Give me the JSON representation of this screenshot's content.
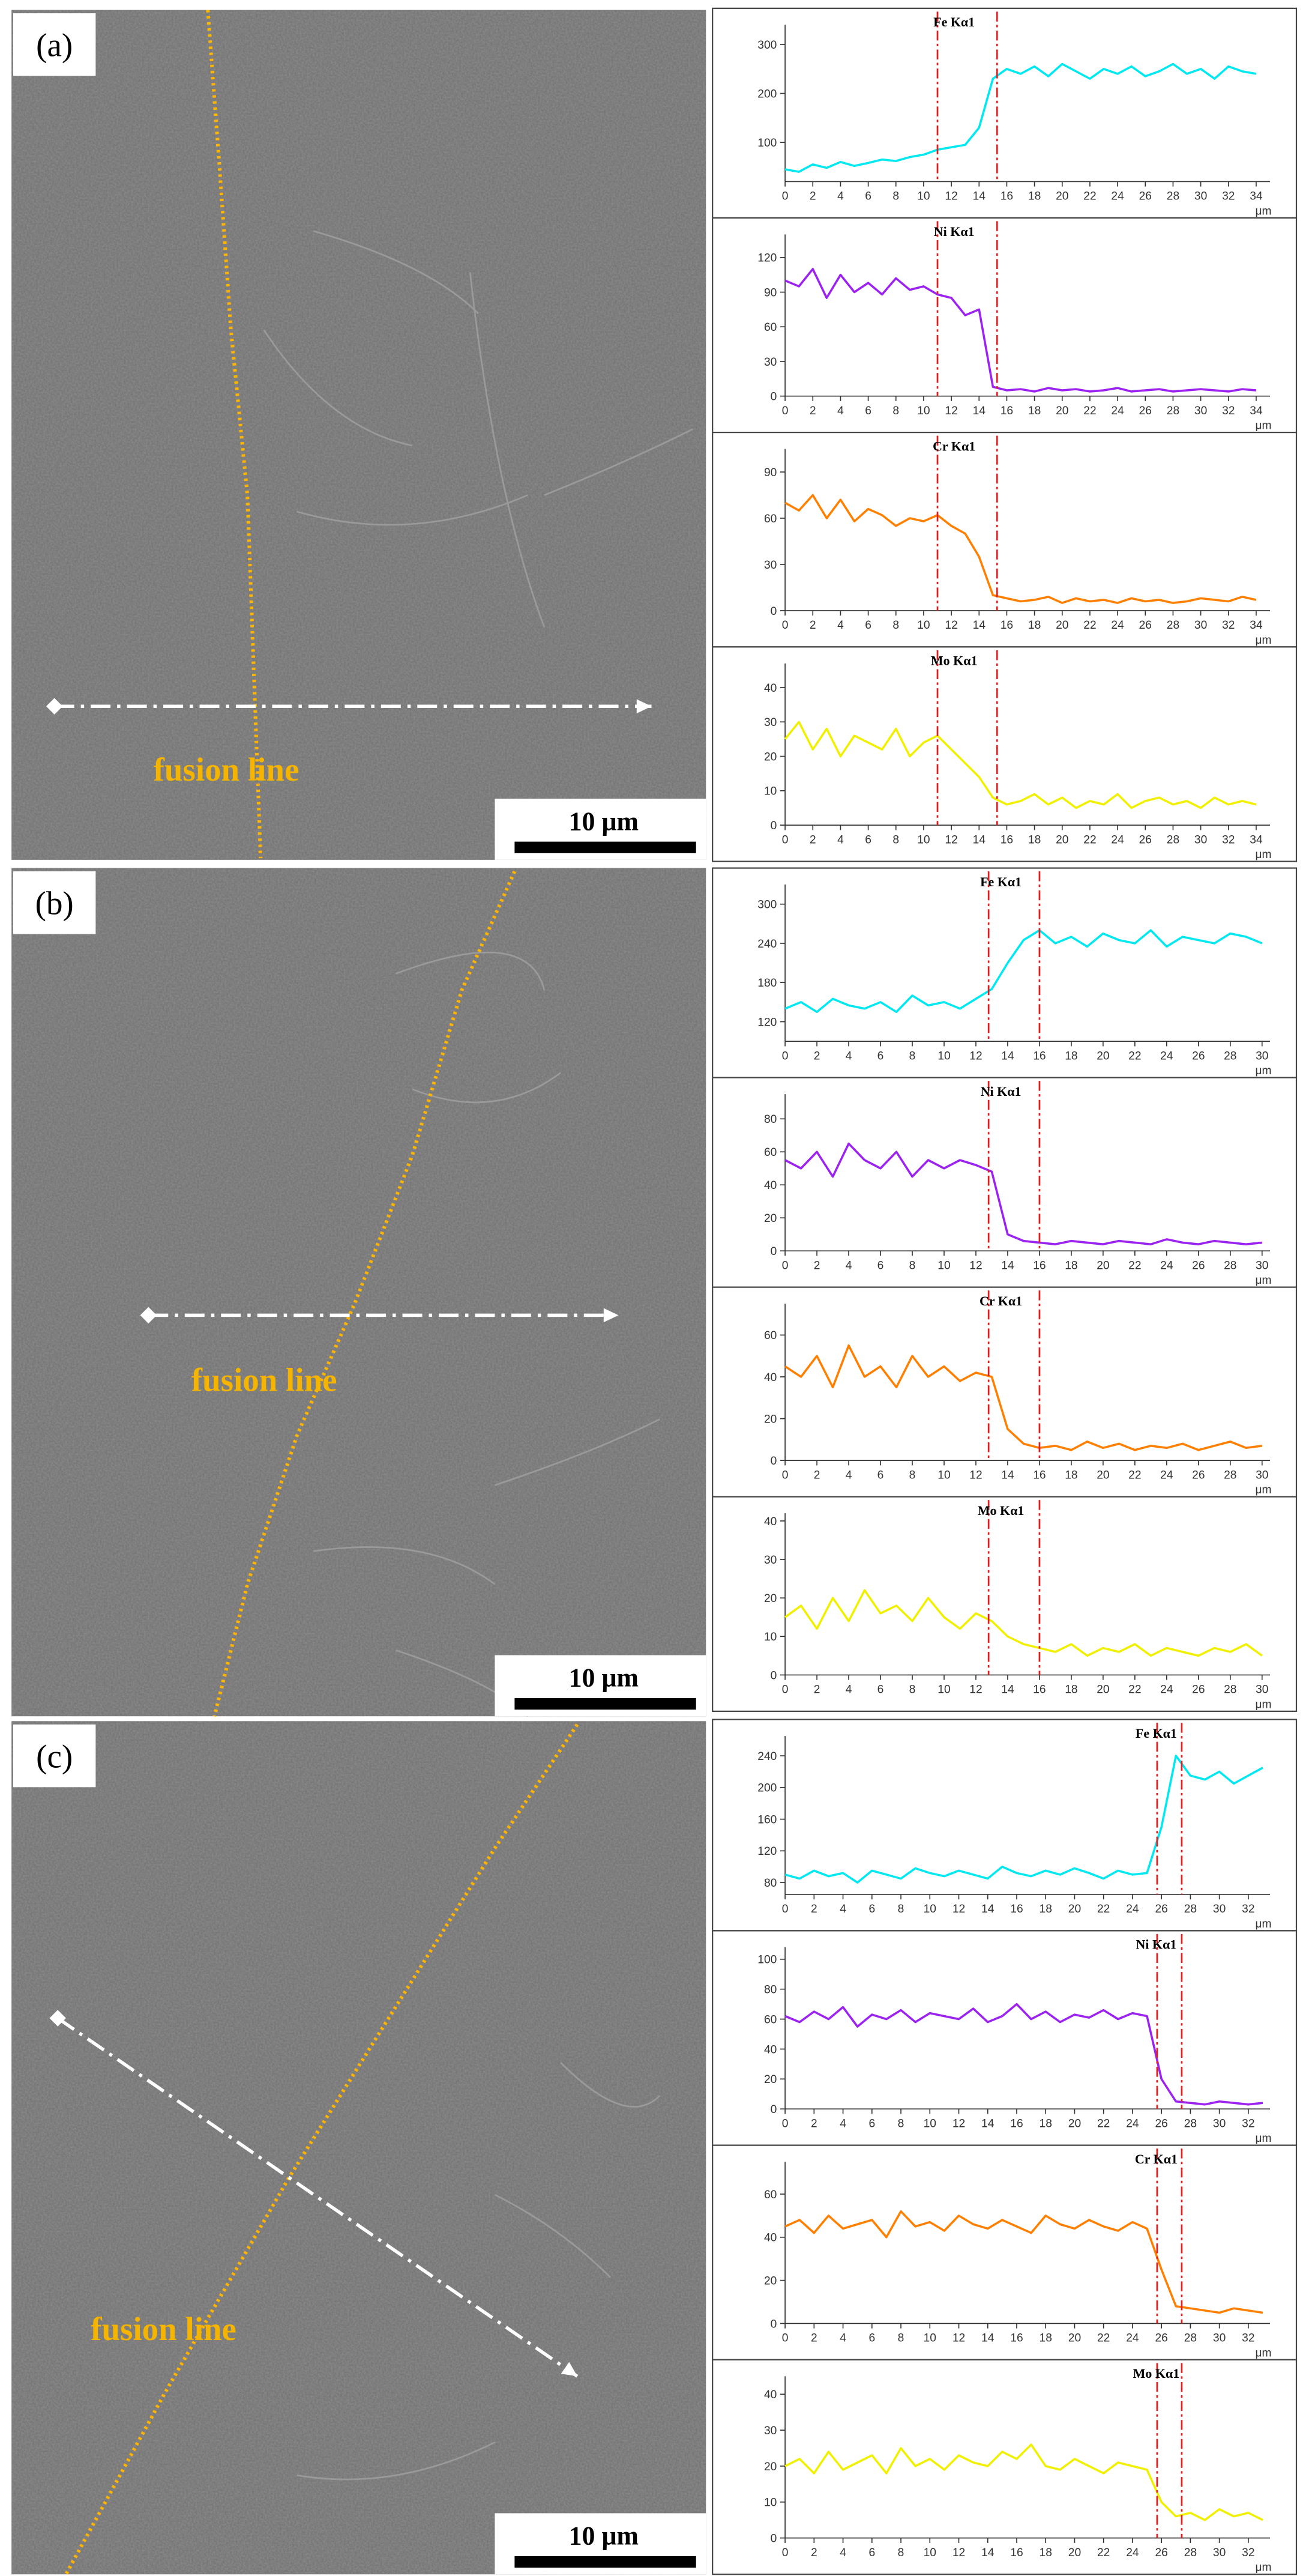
{
  "panels": [
    {
      "label": "(a)",
      "annotation": "fusion line",
      "scale_bar": "10 μm"
    },
    {
      "label": "(b)",
      "annotation": "fusion line",
      "scale_bar": "10 μm"
    },
    {
      "label": "(c)",
      "annotation": "fusion line",
      "scale_bar": "10 μm"
    }
  ],
  "chart_data": [
    {
      "type": "line",
      "title": "Fe Kα1",
      "xlabel": "μm",
      "xlim": [
        0,
        35
      ],
      "xticks": [
        0,
        2,
        4,
        6,
        8,
        10,
        12,
        14,
        16,
        18,
        20,
        22,
        24,
        26,
        28,
        30,
        32,
        34
      ],
      "ylim": [
        20,
        340
      ],
      "yticks": [
        100,
        200,
        300
      ],
      "markers": [
        11,
        15.3
      ],
      "x": [
        0,
        1,
        2,
        3,
        4,
        5,
        6,
        7,
        8,
        9,
        10,
        11,
        12,
        13,
        14,
        15,
        16,
        17,
        18,
        19,
        20,
        21,
        22,
        23,
        24,
        25,
        26,
        27,
        28,
        29,
        30,
        31,
        32,
        33,
        34
      ],
      "series": [
        {
          "name": "Fe Kα1",
          "color": "#00e8f0",
          "values": [
            45,
            40,
            55,
            48,
            60,
            52,
            58,
            65,
            62,
            70,
            75,
            85,
            90,
            95,
            130,
            230,
            250,
            240,
            255,
            235,
            260,
            245,
            230,
            250,
            240,
            255,
            235,
            245,
            260,
            240,
            250,
            230,
            255,
            245,
            240
          ]
        }
      ]
    },
    {
      "type": "line",
      "title": "Ni Kα1",
      "xlabel": "μm",
      "xlim": [
        0,
        35
      ],
      "xticks": [
        0,
        2,
        4,
        6,
        8,
        10,
        12,
        14,
        16,
        18,
        20,
        22,
        24,
        26,
        28,
        30,
        32,
        34
      ],
      "ylim": [
        0,
        140
      ],
      "yticks": [
        0,
        30,
        60,
        90,
        120
      ],
      "markers": [
        11,
        15.3
      ],
      "x": [
        0,
        1,
        2,
        3,
        4,
        5,
        6,
        7,
        8,
        9,
        10,
        11,
        12,
        13,
        14,
        15,
        16,
        17,
        18,
        19,
        20,
        21,
        22,
        23,
        24,
        25,
        26,
        27,
        28,
        29,
        30,
        31,
        32,
        33,
        34
      ],
      "series": [
        {
          "name": "Ni Kα1",
          "color": "#9b22f0",
          "values": [
            100,
            95,
            110,
            85,
            105,
            90,
            98,
            88,
            102,
            92,
            95,
            88,
            85,
            70,
            75,
            8,
            5,
            6,
            4,
            7,
            5,
            6,
            4,
            5,
            7,
            4,
            5,
            6,
            4,
            5,
            6,
            5,
            4,
            6,
            5
          ]
        }
      ]
    },
    {
      "type": "line",
      "title": "Cr Kα1",
      "xlabel": "μm",
      "xlim": [
        0,
        35
      ],
      "xticks": [
        0,
        2,
        4,
        6,
        8,
        10,
        12,
        14,
        16,
        18,
        20,
        22,
        24,
        26,
        28,
        30,
        32,
        34
      ],
      "ylim": [
        0,
        105
      ],
      "yticks": [
        0,
        30,
        60,
        90
      ],
      "markers": [
        11,
        15.3
      ],
      "x": [
        0,
        1,
        2,
        3,
        4,
        5,
        6,
        7,
        8,
        9,
        10,
        11,
        12,
        13,
        14,
        15,
        16,
        17,
        18,
        19,
        20,
        21,
        22,
        23,
        24,
        25,
        26,
        27,
        28,
        29,
        30,
        31,
        32,
        33,
        34
      ],
      "series": [
        {
          "name": "Cr Kα1",
          "color": "#ff8000",
          "values": [
            70,
            65,
            75,
            60,
            72,
            58,
            66,
            62,
            55,
            60,
            58,
            62,
            55,
            50,
            35,
            10,
            8,
            6,
            7,
            9,
            5,
            8,
            6,
            7,
            5,
            8,
            6,
            7,
            5,
            6,
            8,
            7,
            6,
            9,
            7
          ]
        }
      ]
    },
    {
      "type": "line",
      "title": "Mo Kα1",
      "xlabel": "μm",
      "xlim": [
        0,
        35
      ],
      "xticks": [
        0,
        2,
        4,
        6,
        8,
        10,
        12,
        14,
        16,
        18,
        20,
        22,
        24,
        26,
        28,
        30,
        32,
        34
      ],
      "ylim": [
        0,
        47
      ],
      "yticks": [
        0,
        10,
        20,
        30,
        40
      ],
      "markers": [
        11,
        15.3
      ],
      "x": [
        0,
        1,
        2,
        3,
        4,
        5,
        6,
        7,
        8,
        9,
        10,
        11,
        12,
        13,
        14,
        15,
        16,
        17,
        18,
        19,
        20,
        21,
        22,
        23,
        24,
        25,
        26,
        27,
        28,
        29,
        30,
        31,
        32,
        33,
        34
      ],
      "series": [
        {
          "name": "Mo Kα1",
          "color": "#f0f000",
          "values": [
            25,
            30,
            22,
            28,
            20,
            26,
            24,
            22,
            28,
            20,
            24,
            26,
            22,
            18,
            14,
            8,
            6,
            7,
            9,
            6,
            8,
            5,
            7,
            6,
            9,
            5,
            7,
            8,
            6,
            7,
            5,
            8,
            6,
            7,
            6
          ]
        }
      ]
    },
    {
      "type": "line",
      "title": "Fe Kα1",
      "xlabel": "μm",
      "xlim": [
        0,
        30.5
      ],
      "xticks": [
        0,
        2,
        4,
        6,
        8,
        10,
        12,
        14,
        16,
        18,
        20,
        22,
        24,
        26,
        28,
        30
      ],
      "ylim": [
        90,
        330
      ],
      "yticks": [
        120,
        180,
        240,
        300
      ],
      "markers": [
        12.8,
        16
      ],
      "x": [
        0,
        1,
        2,
        3,
        4,
        5,
        6,
        7,
        8,
        9,
        10,
        11,
        12,
        13,
        14,
        15,
        16,
        17,
        18,
        19,
        20,
        21,
        22,
        23,
        24,
        25,
        26,
        27,
        28,
        29,
        30
      ],
      "series": [
        {
          "name": "Fe Kα1",
          "color": "#00e8f0",
          "values": [
            140,
            150,
            135,
            155,
            145,
            140,
            150,
            135,
            160,
            145,
            150,
            140,
            155,
            170,
            210,
            245,
            260,
            240,
            250,
            235,
            255,
            245,
            240,
            260,
            235,
            250,
            245,
            240,
            255,
            250,
            240
          ]
        }
      ]
    },
    {
      "type": "line",
      "title": "Ni Kα1",
      "xlabel": "μm",
      "xlim": [
        0,
        30.5
      ],
      "xticks": [
        0,
        2,
        4,
        6,
        8,
        10,
        12,
        14,
        16,
        18,
        20,
        22,
        24,
        26,
        28,
        30
      ],
      "ylim": [
        0,
        95
      ],
      "yticks": [
        0,
        20,
        40,
        60,
        80
      ],
      "markers": [
        12.8,
        16
      ],
      "x": [
        0,
        1,
        2,
        3,
        4,
        5,
        6,
        7,
        8,
        9,
        10,
        11,
        12,
        13,
        14,
        15,
        16,
        17,
        18,
        19,
        20,
        21,
        22,
        23,
        24,
        25,
        26,
        27,
        28,
        29,
        30
      ],
      "series": [
        {
          "name": "Ni Kα1",
          "color": "#9b22f0",
          "values": [
            55,
            50,
            60,
            45,
            65,
            55,
            50,
            60,
            45,
            55,
            50,
            55,
            52,
            48,
            10,
            6,
            5,
            4,
            6,
            5,
            4,
            6,
            5,
            4,
            7,
            5,
            4,
            6,
            5,
            4,
            5
          ]
        }
      ]
    },
    {
      "type": "line",
      "title": "Cr Kα1",
      "xlabel": "μm",
      "xlim": [
        0,
        30.5
      ],
      "xticks": [
        0,
        2,
        4,
        6,
        8,
        10,
        12,
        14,
        16,
        18,
        20,
        22,
        24,
        26,
        28,
        30
      ],
      "ylim": [
        0,
        75
      ],
      "yticks": [
        0,
        20,
        40,
        60
      ],
      "markers": [
        12.8,
        16
      ],
      "x": [
        0,
        1,
        2,
        3,
        4,
        5,
        6,
        7,
        8,
        9,
        10,
        11,
        12,
        13,
        14,
        15,
        16,
        17,
        18,
        19,
        20,
        21,
        22,
        23,
        24,
        25,
        26,
        27,
        28,
        29,
        30
      ],
      "series": [
        {
          "name": "Cr Kα1",
          "color": "#ff8000",
          "values": [
            45,
            40,
            50,
            35,
            55,
            40,
            45,
            35,
            50,
            40,
            45,
            38,
            42,
            40,
            15,
            8,
            6,
            7,
            5,
            9,
            6,
            8,
            5,
            7,
            6,
            8,
            5,
            7,
            9,
            6,
            7
          ]
        }
      ]
    },
    {
      "type": "line",
      "title": "Mo Kα1",
      "xlabel": "μm",
      "xlim": [
        0,
        30.5
      ],
      "xticks": [
        0,
        2,
        4,
        6,
        8,
        10,
        12,
        14,
        16,
        18,
        20,
        22,
        24,
        26,
        28,
        30
      ],
      "ylim": [
        0,
        42
      ],
      "yticks": [
        0,
        10,
        20,
        30,
        40
      ],
      "markers": [
        12.8,
        16
      ],
      "x": [
        0,
        1,
        2,
        3,
        4,
        5,
        6,
        7,
        8,
        9,
        10,
        11,
        12,
        13,
        14,
        15,
        16,
        17,
        18,
        19,
        20,
        21,
        22,
        23,
        24,
        25,
        26,
        27,
        28,
        29,
        30
      ],
      "series": [
        {
          "name": "Mo Kα1",
          "color": "#f0f000",
          "values": [
            15,
            18,
            12,
            20,
            14,
            22,
            16,
            18,
            14,
            20,
            15,
            12,
            16,
            14,
            10,
            8,
            7,
            6,
            8,
            5,
            7,
            6,
            8,
            5,
            7,
            6,
            5,
            7,
            6,
            8,
            5
          ]
        }
      ]
    },
    {
      "type": "line",
      "title": "Fe Kα1",
      "xlabel": "μm",
      "xlim": [
        0,
        33.5
      ],
      "xticks": [
        0,
        2,
        4,
        6,
        8,
        10,
        12,
        14,
        16,
        18,
        20,
        22,
        24,
        26,
        28,
        30,
        32
      ],
      "ylim": [
        65,
        265
      ],
      "yticks": [
        80,
        120,
        160,
        200,
        240
      ],
      "markers": [
        25.7,
        27.4
      ],
      "x": [
        0,
        1,
        2,
        3,
        4,
        5,
        6,
        7,
        8,
        9,
        10,
        11,
        12,
        13,
        14,
        15,
        16,
        17,
        18,
        19,
        20,
        21,
        22,
        23,
        24,
        25,
        26,
        27,
        28,
        29,
        30,
        31,
        32,
        33
      ],
      "series": [
        {
          "name": "Fe Kα1",
          "color": "#00e8f0",
          "values": [
            90,
            85,
            95,
            88,
            92,
            80,
            95,
            90,
            85,
            98,
            92,
            88,
            95,
            90,
            85,
            100,
            92,
            88,
            95,
            90,
            98,
            92,
            85,
            95,
            90,
            92,
            150,
            240,
            215,
            210,
            220,
            205,
            215,
            225
          ]
        }
      ]
    },
    {
      "type": "line",
      "title": "Ni Kα1",
      "xlabel": "μm",
      "xlim": [
        0,
        33.5
      ],
      "xticks": [
        0,
        2,
        4,
        6,
        8,
        10,
        12,
        14,
        16,
        18,
        20,
        22,
        24,
        26,
        28,
        30,
        32
      ],
      "ylim": [
        0,
        108
      ],
      "yticks": [
        0,
        20,
        40,
        60,
        80,
        100
      ],
      "markers": [
        25.7,
        27.4
      ],
      "x": [
        0,
        1,
        2,
        3,
        4,
        5,
        6,
        7,
        8,
        9,
        10,
        11,
        12,
        13,
        14,
        15,
        16,
        17,
        18,
        19,
        20,
        21,
        22,
        23,
        24,
        25,
        26,
        27,
        28,
        29,
        30,
        31,
        32,
        33
      ],
      "series": [
        {
          "name": "Ni Kα1",
          "color": "#9b22f0",
          "values": [
            62,
            58,
            65,
            60,
            68,
            55,
            63,
            60,
            66,
            58,
            64,
            62,
            60,
            67,
            58,
            62,
            70,
            60,
            65,
            58,
            63,
            61,
            66,
            60,
            64,
            62,
            20,
            5,
            4,
            3,
            5,
            4,
            3,
            4
          ]
        }
      ]
    },
    {
      "type": "line",
      "title": "Cr Kα1",
      "xlabel": "μm",
      "xlim": [
        0,
        33.5
      ],
      "xticks": [
        0,
        2,
        4,
        6,
        8,
        10,
        12,
        14,
        16,
        18,
        20,
        22,
        24,
        26,
        28,
        30,
        32
      ],
      "ylim": [
        0,
        75
      ],
      "yticks": [
        0,
        20,
        40,
        60
      ],
      "markers": [
        25.7,
        27.4
      ],
      "x": [
        0,
        1,
        2,
        3,
        4,
        5,
        6,
        7,
        8,
        9,
        10,
        11,
        12,
        13,
        14,
        15,
        16,
        17,
        18,
        19,
        20,
        21,
        22,
        23,
        24,
        25,
        26,
        27,
        28,
        29,
        30,
        31,
        32,
        33
      ],
      "series": [
        {
          "name": "Cr Kα1",
          "color": "#ff8000",
          "values": [
            45,
            48,
            42,
            50,
            44,
            46,
            48,
            40,
            52,
            45,
            47,
            43,
            50,
            46,
            44,
            48,
            45,
            42,
            50,
            46,
            44,
            48,
            45,
            43,
            47,
            44,
            25,
            8,
            7,
            6,
            5,
            7,
            6,
            5
          ]
        }
      ]
    },
    {
      "type": "line",
      "title": "Mo Kα1",
      "xlabel": "μm",
      "xlim": [
        0,
        33.5
      ],
      "xticks": [
        0,
        2,
        4,
        6,
        8,
        10,
        12,
        14,
        16,
        18,
        20,
        22,
        24,
        26,
        28,
        30,
        32
      ],
      "ylim": [
        0,
        45
      ],
      "yticks": [
        0,
        10,
        20,
        30,
        40
      ],
      "markers": [
        25.7,
        27.4
      ],
      "x": [
        0,
        1,
        2,
        3,
        4,
        5,
        6,
        7,
        8,
        9,
        10,
        11,
        12,
        13,
        14,
        15,
        16,
        17,
        18,
        19,
        20,
        21,
        22,
        23,
        24,
        25,
        26,
        27,
        28,
        29,
        30,
        31,
        32,
        33
      ],
      "series": [
        {
          "name": "Mo Kα1",
          "color": "#f0f000",
          "values": [
            20,
            22,
            18,
            24,
            19,
            21,
            23,
            18,
            25,
            20,
            22,
            19,
            23,
            21,
            20,
            24,
            22,
            26,
            20,
            19,
            22,
            20,
            18,
            21,
            20,
            19,
            10,
            6,
            7,
            5,
            8,
            6,
            7,
            5
          ]
        }
      ]
    }
  ]
}
